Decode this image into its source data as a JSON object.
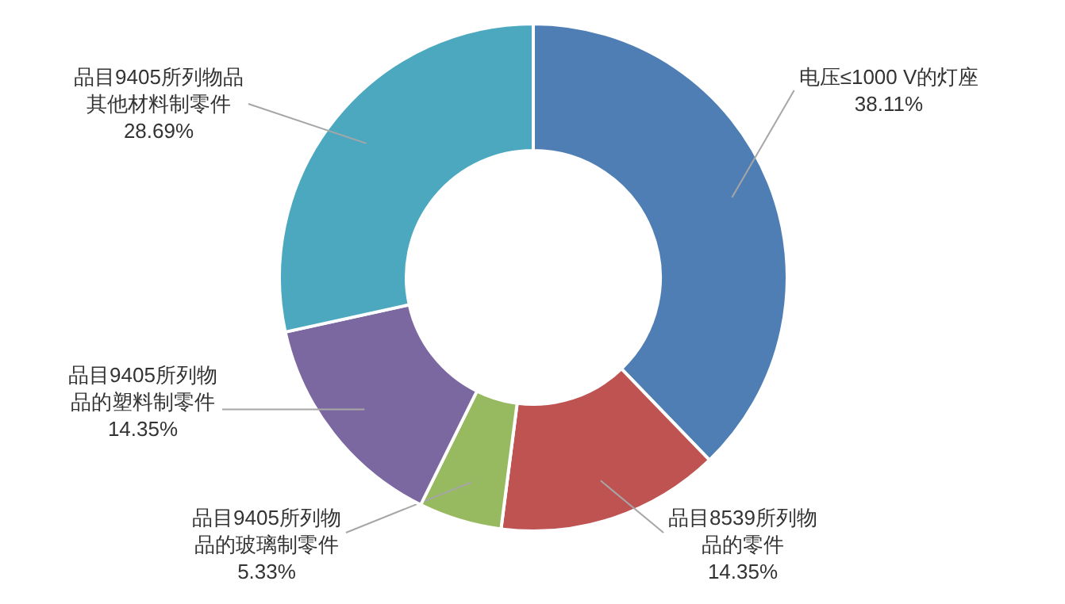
{
  "chart_data": {
    "type": "donut",
    "categories": [
      "电压≤1000 V的灯座",
      "品目8539所列物品的零件",
      "品目9405所列物品的玻璃制零件",
      "品目9405所列物品的塑料制零件",
      "品目9405所列物品其他材料制零件"
    ],
    "values": [
      38.11,
      14.35,
      5.33,
      14.35,
      28.69
    ],
    "value_labels": [
      "38.11%",
      "14.35%",
      "5.33%",
      "14.35%",
      "28.69%"
    ],
    "colors": [
      "#4f7eb4",
      "#be5352",
      "#97b960",
      "#7c68a0",
      "#4ba8bf"
    ]
  }
}
